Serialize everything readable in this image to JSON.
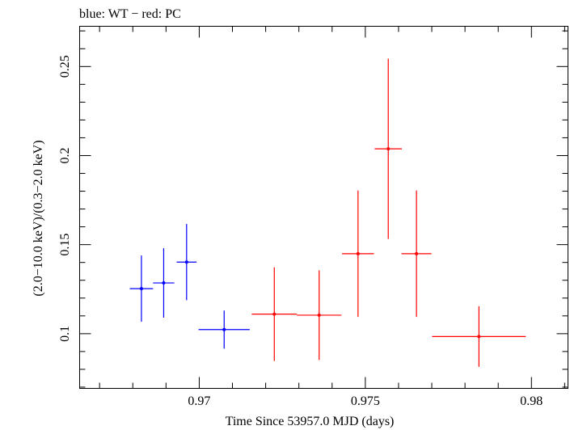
{
  "chart_data": {
    "type": "scatter",
    "title": "blue: WT − red: PC",
    "xlabel": "Time Since 53957.0 MJD (days)",
    "ylabel": "(2.0−10.0 keV)/(0.3−2.0 keV)",
    "xlim": [
      0.9664,
      0.9811
    ],
    "ylim": [
      0.0693,
      0.2726
    ],
    "x_ticks": [
      {
        "value": 0.97,
        "label": "0.97"
      },
      {
        "value": 0.975,
        "label": "0.975"
      },
      {
        "value": 0.98,
        "label": "0.98"
      }
    ],
    "y_ticks": [
      {
        "value": 0.1,
        "label": "0.1"
      },
      {
        "value": 0.15,
        "label": "0.15"
      },
      {
        "value": 0.2,
        "label": "0.2"
      },
      {
        "value": 0.25,
        "label": "0.25"
      }
    ],
    "x_minor_step": 0.001,
    "y_minor_step": 0.01,
    "series": [
      {
        "name": "WT",
        "color": "#0000ff",
        "points": [
          {
            "x": 0.96826,
            "xerr_lo": 0.00035,
            "xerr_hi": 0.00035,
            "y": 0.1253,
            "yerr_lo": 0.0186,
            "yerr_hi": 0.0186
          },
          {
            "x": 0.96893,
            "xerr_lo": 0.00032,
            "xerr_hi": 0.00032,
            "y": 0.1285,
            "yerr_lo": 0.0195,
            "yerr_hi": 0.0195
          },
          {
            "x": 0.96962,
            "xerr_lo": 0.0003,
            "xerr_hi": 0.0003,
            "y": 0.1402,
            "yerr_lo": 0.0214,
            "yerr_hi": 0.0214
          },
          {
            "x": 0.97075,
            "xerr_lo": 0.00077,
            "xerr_hi": 0.00077,
            "y": 0.1023,
            "yerr_lo": 0.0107,
            "yerr_hi": 0.0107
          }
        ]
      },
      {
        "name": "PC",
        "color": "#ff0000",
        "points": [
          {
            "x": 0.97226,
            "xerr_lo": 0.00068,
            "xerr_hi": 0.00068,
            "y": 0.111,
            "yerr_lo": 0.0263,
            "yerr_hi": 0.0263
          },
          {
            "x": 0.97361,
            "xerr_lo": 0.00067,
            "xerr_hi": 0.00067,
            "y": 0.1104,
            "yerr_lo": 0.0252,
            "yerr_hi": 0.0252
          },
          {
            "x": 0.97478,
            "xerr_lo": 0.00048,
            "xerr_hi": 0.00048,
            "y": 0.1449,
            "yerr_lo": 0.0355,
            "yerr_hi": 0.0355
          },
          {
            "x": 0.97569,
            "xerr_lo": 0.00041,
            "xerr_hi": 0.00041,
            "y": 0.2038,
            "yerr_lo": 0.0506,
            "yerr_hi": 0.0506
          },
          {
            "x": 0.97654,
            "xerr_lo": 0.00045,
            "xerr_hi": 0.00045,
            "y": 0.1449,
            "yerr_lo": 0.0355,
            "yerr_hi": 0.0355
          },
          {
            "x": 0.97842,
            "xerr_lo": 0.00141,
            "xerr_hi": 0.00141,
            "y": 0.0984,
            "yerr_lo": 0.017,
            "yerr_hi": 0.017
          }
        ]
      }
    ],
    "grid": false,
    "legend": "none"
  }
}
